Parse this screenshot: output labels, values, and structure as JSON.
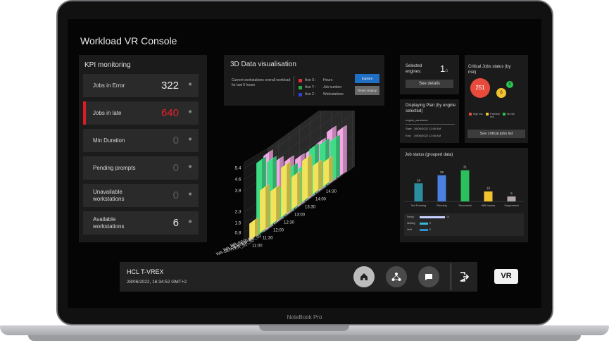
{
  "app": {
    "title": "Workload VR Console"
  },
  "laptop": {
    "brand": "NoteBook Pro"
  },
  "kpi": {
    "title": "KPI monitoring",
    "items": [
      {
        "label": "Jobs in Error",
        "value": "322"
      },
      {
        "label": "Jobs in late",
        "value": "640"
      },
      {
        "label": "Min Duration",
        "value": "0"
      },
      {
        "label": "Pending prompts",
        "value": "0"
      },
      {
        "label": "Unavailable workstations",
        "value": "0"
      },
      {
        "label": "Available workstations",
        "value": "6"
      }
    ]
  },
  "viz": {
    "title": "3D Data visualisation",
    "description": "Current workstations overall workload for last 6 hours",
    "axes": [
      {
        "name": "Axe X :",
        "value": "Hours",
        "color": "#e0303a"
      },
      {
        "name": "Axe Y :",
        "value": "Job number",
        "color": "#2aa84a"
      },
      {
        "name": "Axe Z :",
        "value": "Workstations",
        "color": "#2e3fd6"
      }
    ],
    "explore_label": "Explore",
    "reset_label": "Reset display"
  },
  "chart_data": {
    "type": "bar",
    "yticks": [
      "5.4",
      "4.6",
      "3.8",
      "2.3",
      "1.5",
      "0.8"
    ],
    "categories": [
      "11:00",
      "11:30",
      "12:00",
      "12:30",
      "13:00",
      "13:30",
      "14:00",
      "14:30"
    ],
    "z_labels": [
      "WA-SERVER_03",
      "WA-SERVER_02",
      "WA-SERVER_01"
    ],
    "series": [
      {
        "name": "WA-SERVER_03",
        "color": "#f3a7e4",
        "values": [
          5.4,
          4.4,
          3.9,
          3.5,
          3.4,
          3.5,
          3.8,
          3.3
        ]
      },
      {
        "name": "WA-SERVER_02",
        "color": "#3fdc86",
        "values": [
          5.2,
          4.7,
          2.2,
          3.1,
          2.6,
          3.4,
          3.2,
          2.9
        ]
      },
      {
        "name": "WA-SERVER_01",
        "color": "#f2e35a",
        "values": [
          1.2,
          3.0,
          2.4,
          3.5,
          2.3,
          2.9,
          2.0,
          1.7
        ]
      }
    ]
  },
  "engines": {
    "label": "Selected engines:",
    "count": "1",
    "total": "/1",
    "details_label": "See details"
  },
  "critical": {
    "title": "Critical Jobs status (by risk)",
    "high": "251",
    "potential": "6",
    "norisk": "0",
    "legend": [
      {
        "label": "High risk",
        "color": "#e84a3c"
      },
      {
        "label": "Potential risk",
        "color": "#f2c230"
      },
      {
        "label": "No risk",
        "color": "#2bc24e"
      }
    ],
    "button_label": "See critical jobs list"
  },
  "plan": {
    "title": "Displaying Plan (by engine selected)",
    "engine": "engine_wa-server",
    "start_label": "Start:",
    "start": "26/06/2022 12:00 AM",
    "end_label": "End:",
    "end": "29/06/2022 12:00 AM"
  },
  "job_status": {
    "title": "Job status (grouped data)",
    "chart_data": {
      "type": "bar",
      "categories": [
        "Not Running",
        "Running",
        "Successful",
        "With Issues",
        "Suppressed"
      ],
      "values": [
        18,
        26,
        31,
        10,
        5
      ],
      "colors": [
        "#2b8ea0",
        "#4b7fe0",
        "#2bbf5e",
        "#f2c230",
        "#b0a7b0"
      ]
    },
    "hbars": [
      {
        "label": "Ready",
        "value": "16",
        "frac": 1.0,
        "color": "#c8d0ff"
      },
      {
        "label": "Waiting",
        "value": "5",
        "frac": 0.33,
        "color": "#3ab8d8"
      },
      {
        "label": "Held",
        "value": "5",
        "frac": 0.33,
        "color": "#2f8fc9"
      }
    ]
  },
  "footer": {
    "product": "HCL T-VREX",
    "datetime": "28/06/2022, 16:34:52 GMT+2",
    "vr_label": "VR"
  }
}
